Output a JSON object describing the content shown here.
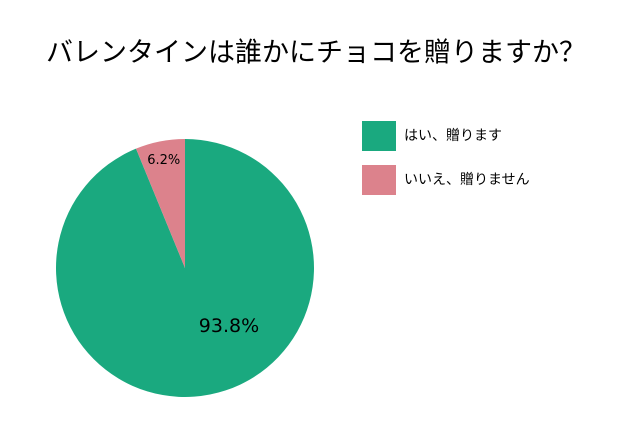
{
  "chart_data": {
    "type": "pie",
    "title": "バレンタインは誰かにチョコを贈りますか？",
    "categories": [
      "はい、贈ります",
      "いいえ、贈りません"
    ],
    "values": [
      93.8,
      6.2
    ],
    "value_labels": [
      "93.8%",
      "6.2%"
    ],
    "colors": [
      "#1aa97f",
      "#dc828c"
    ],
    "legend": "right"
  }
}
